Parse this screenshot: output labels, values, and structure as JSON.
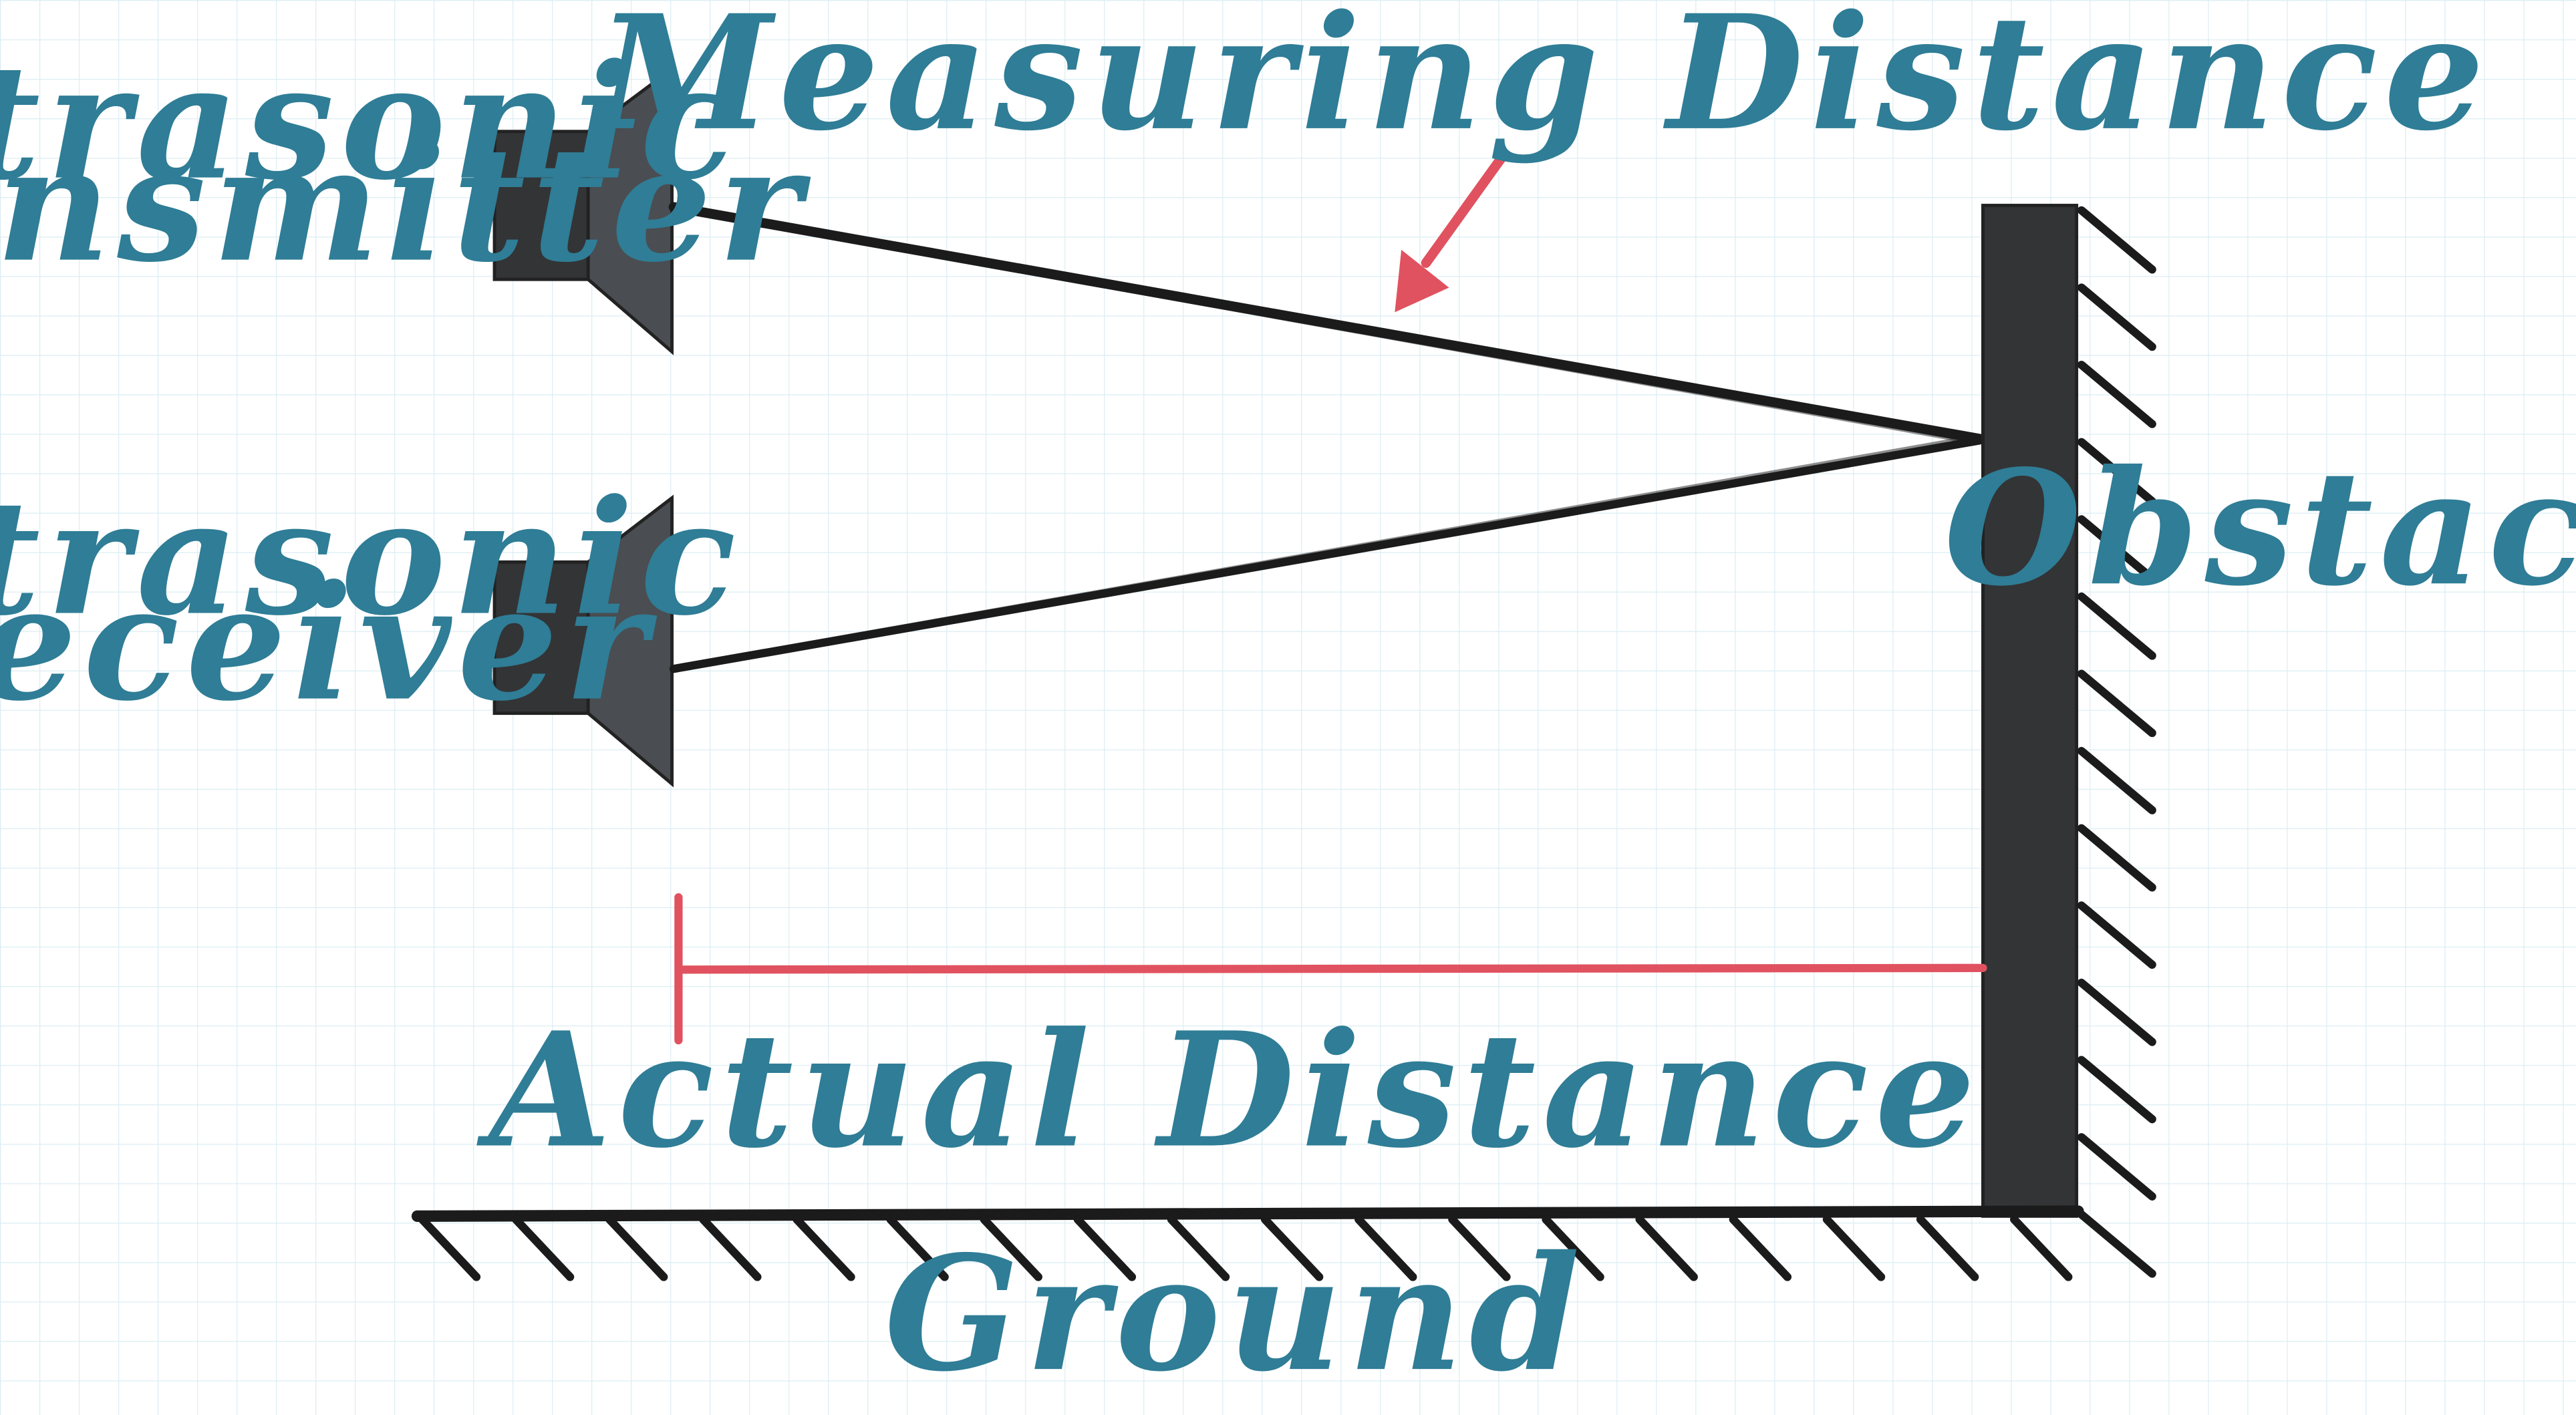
{
  "labels": {
    "transmitter_line1": "Ultrasonic",
    "transmitter_line2": "Transmitter",
    "receiver_line1": "Ultrasonic",
    "receiver_line2": "Receiver",
    "measuring_distance": "Measuring Distance",
    "actual_distance": "Actual Distance",
    "obstacle": "Obstacle",
    "ground": "Ground"
  },
  "colors": {
    "background": "#ffffff",
    "grid": "#dcedf3",
    "label_text": "#2f7d96",
    "component_dark": "#333436",
    "component_mid": "#4a4d51",
    "accent_red": "#e0525f",
    "ink": "#1b1b1b"
  }
}
